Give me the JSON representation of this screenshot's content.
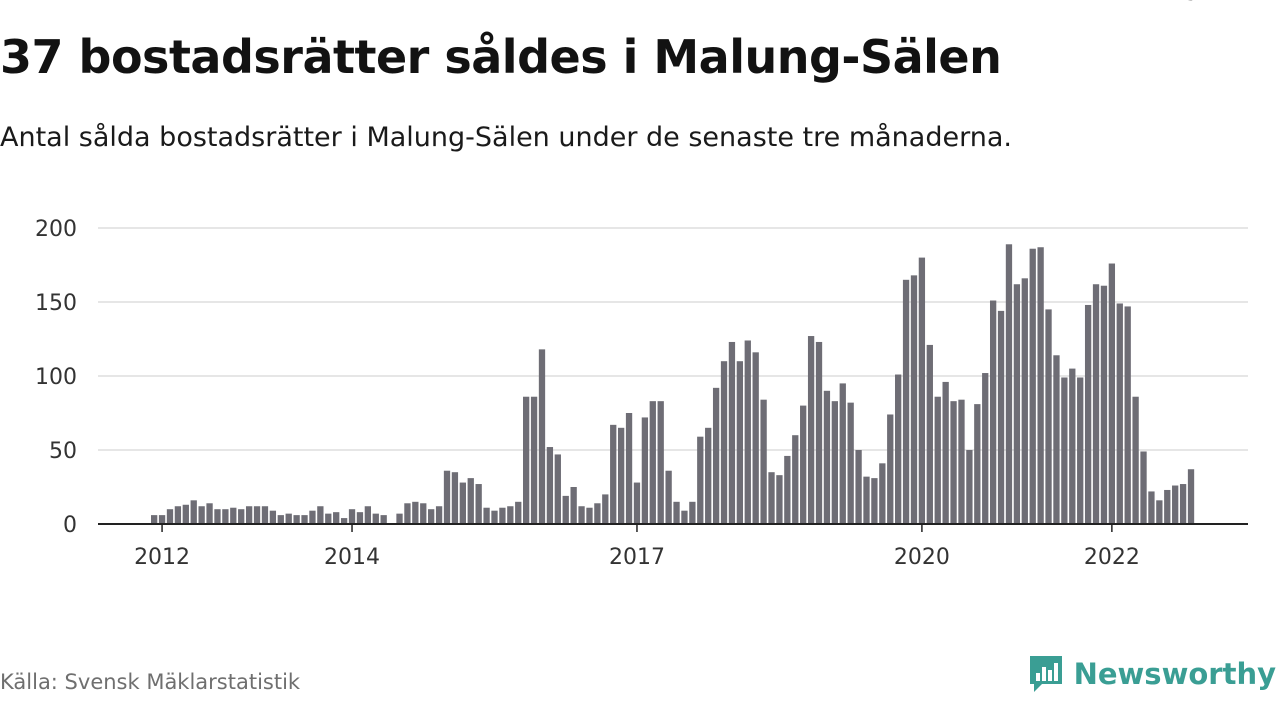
{
  "header": {
    "title": "37 bostadsrätter såldes i Malung-Sälen",
    "subtitle": "Antal sålda bostadsrätter i Malung-Sälen under de senaste tre månaderna."
  },
  "footer": {
    "source": "Källa: Svensk Mäklarstatistik",
    "brand_name": "Newsworthy",
    "brand_icon": "newsworthy-logo-icon",
    "brand_color": "#3a9e94"
  },
  "chart_data": {
    "type": "bar",
    "title": "",
    "xlabel": "",
    "ylabel": "",
    "ylim": [
      0,
      200
    ],
    "yticks": [
      0,
      50,
      100,
      150,
      200
    ],
    "grid": true,
    "legend": "none",
    "colors": {
      "bar": "#6e6d75",
      "highlight": "#16a39b",
      "grid": "#dddddd",
      "axis": "#222222"
    },
    "start": "2011-12",
    "xtick_labels": [
      {
        "label": "2012",
        "index": 1
      },
      {
        "label": "2014",
        "index": 25
      },
      {
        "label": "2017",
        "index": 61
      },
      {
        "label": "2020",
        "index": 97
      },
      {
        "label": "2022",
        "index": 121
      }
    ],
    "highlight": {
      "index": 132,
      "label": "37"
    },
    "values": [
      6,
      6,
      10,
      12,
      13,
      16,
      12,
      14,
      10,
      10,
      11,
      10,
      12,
      12,
      12,
      9,
      6,
      7,
      6,
      6,
      9,
      12,
      7,
      8,
      4,
      10,
      8,
      12,
      7,
      6,
      0,
      7,
      14,
      15,
      14,
      10,
      12,
      36,
      35,
      28,
      31,
      27,
      11,
      9,
      11,
      12,
      15,
      86,
      86,
      118,
      52,
      47,
      19,
      25,
      12,
      11,
      14,
      20,
      67,
      65,
      75,
      28,
      72,
      83,
      83,
      36,
      15,
      9,
      15,
      59,
      65,
      92,
      110,
      123,
      110,
      124,
      116,
      84,
      35,
      33,
      46,
      60,
      80,
      127,
      123,
      90,
      83,
      95,
      82,
      50,
      32,
      31,
      41,
      74,
      101,
      165,
      168,
      180,
      121,
      86,
      96,
      83,
      84,
      50,
      81,
      102,
      151,
      144,
      189,
      162,
      166,
      186,
      187,
      145,
      114,
      99,
      105,
      99,
      148,
      162,
      161,
      176,
      149,
      147,
      86,
      49,
      22,
      16,
      23,
      26,
      27,
      37
    ]
  }
}
